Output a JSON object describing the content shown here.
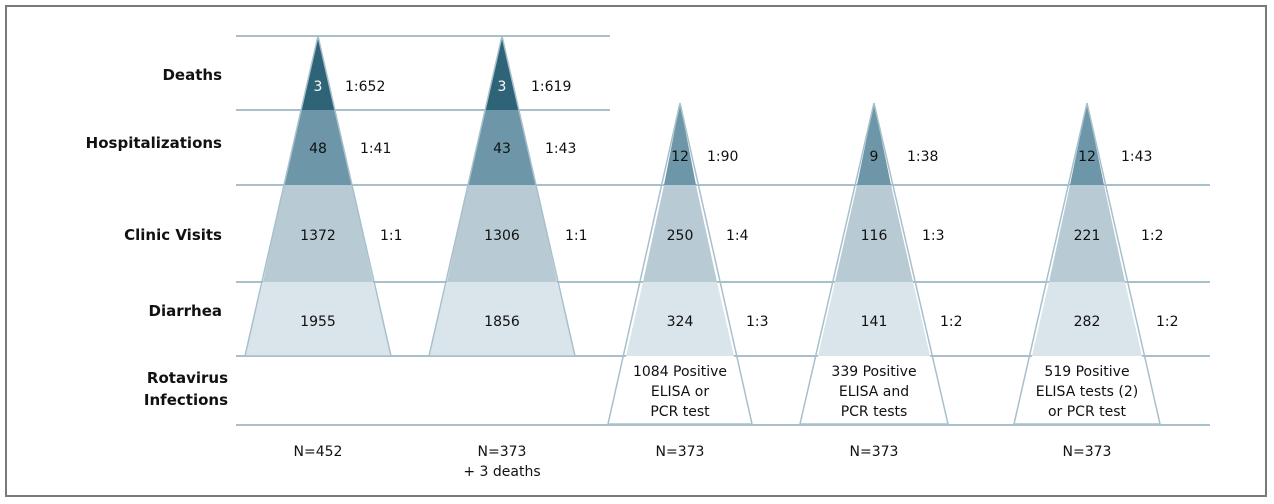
{
  "colors": {
    "deaths": "#2f6478",
    "hospitalizations": "#6d97a8",
    "clinic_visits": "#b8cbd5",
    "diarrhea": "#dae4eb",
    "gridline": "#a7c0cc",
    "text": "#111111"
  },
  "row_labels": {
    "deaths": "Deaths",
    "hospitalizations": "Hospitalizations",
    "clinic_visits": "Clinic Visits",
    "diarrhea": "Diarrhea",
    "rotavirus_1": "Rotavirus",
    "rotavirus_2": "Infections"
  },
  "pyramids": [
    {
      "deaths": "3",
      "deaths_ratio": "1:652",
      "hospitalizations": "48",
      "hospitalizations_ratio": "1:41",
      "clinic_visits": "1372",
      "clinic_visits_ratio": "1:1",
      "diarrhea": "1955",
      "n_label": "N=452"
    },
    {
      "deaths": "3",
      "deaths_ratio": "1:619",
      "hospitalizations": "43",
      "hospitalizations_ratio": "1:43",
      "clinic_visits": "1306",
      "clinic_visits_ratio": "1:1",
      "diarrhea": "1856",
      "n_label": "N=373",
      "n_label_2": "+ 3 deaths"
    },
    {
      "hospitalizations": "12",
      "hospitalizations_ratio": "1:90",
      "clinic_visits": "250",
      "clinic_visits_ratio": "1:4",
      "diarrhea": "324",
      "diarrhea_ratio": "1:3",
      "infections_lines": [
        "1084 Positive",
        "ELISA or",
        "PCR test"
      ],
      "n_label": "N=373"
    },
    {
      "hospitalizations": "9",
      "hospitalizations_ratio": "1:38",
      "clinic_visits": "116",
      "clinic_visits_ratio": "1:3",
      "diarrhea": "141",
      "diarrhea_ratio": "1:2",
      "infections_lines": [
        "339 Positive",
        "ELISA and",
        "PCR tests"
      ],
      "n_label": "N=373"
    },
    {
      "hospitalizations": "12",
      "hospitalizations_ratio": "1:43",
      "clinic_visits": "221",
      "clinic_visits_ratio": "1:2",
      "diarrhea": "282",
      "diarrhea_ratio": "1:2",
      "infections_lines": [
        "519 Positive",
        "ELISA tests (2)",
        "or PCR test"
      ],
      "n_label": "N=373"
    }
  ]
}
